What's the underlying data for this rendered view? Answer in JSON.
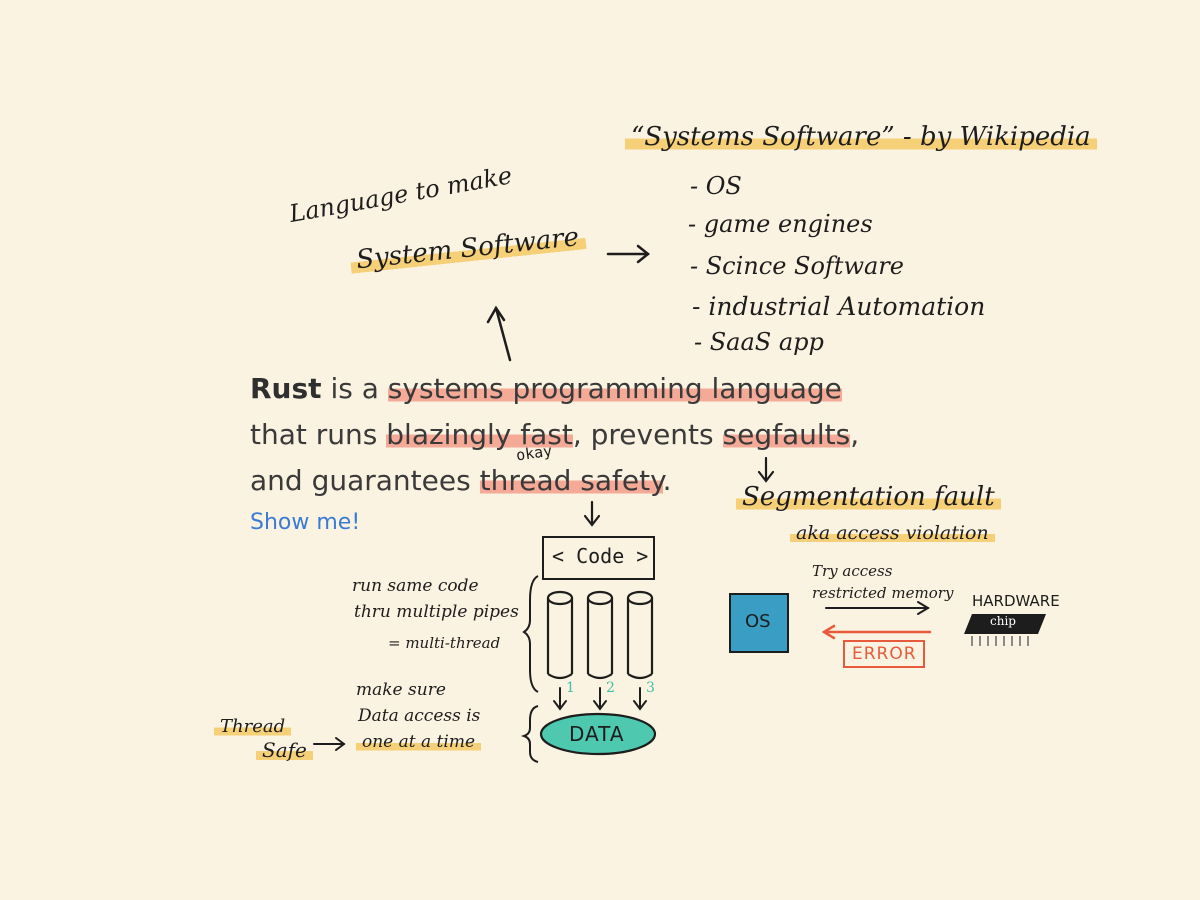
{
  "wiki": {
    "title": "“Systems Software” - by Wikipedia",
    "items": [
      "- OS",
      "- game engines",
      "- Scince Software",
      "- industrial Automation",
      "- SaaS app"
    ]
  },
  "language_note": {
    "line1": "Language to make",
    "line2": "System Software"
  },
  "paragraph": {
    "rust": "Rust",
    "is_a": " is a ",
    "spl": "systems programming language",
    "that_runs": "that runs ",
    "blazing": "blazingly fast",
    "comma": ", prevents ",
    "segfaults": "segfaults",
    "comma2": ",",
    "and_guarantees": "and guarantees ",
    "thread_safety": "thread safety",
    "period": "."
  },
  "okay_note": "okay",
  "show_me": "Show me!",
  "segfault": {
    "title": "Segmentation fault",
    "aka": "aka  access violation"
  },
  "code_box": "< Code >",
  "pipes_note": {
    "l1": "run same code",
    "l2": "thru multiple pipes",
    "l3": "= multi-thread"
  },
  "pipe_numbers": [
    "1",
    "2",
    "3"
  ],
  "data_label": "DATA",
  "data_note": {
    "l1": "make sure",
    "l2": "Data access is",
    "l3": "one at a time"
  },
  "thread_safe": {
    "l1": "Thread",
    "l2": "Safe"
  },
  "os_label": "OS",
  "try_access": {
    "l1": "Try access",
    "l2": "restricted memory"
  },
  "hardware": {
    "label": "HARDWARE",
    "chip": "chip"
  },
  "error_label": "ERROR",
  "colors": {
    "background": "#fbf3e1",
    "yellow_highlight": "#f5c454",
    "red_highlight": "#f06e5a",
    "os_box": "#3a9ec4",
    "data_oval": "#4ec9b0",
    "error_red": "#e85a3c",
    "link_blue": "#3a7bd5",
    "teal_numbers": "#3fbfa8"
  }
}
